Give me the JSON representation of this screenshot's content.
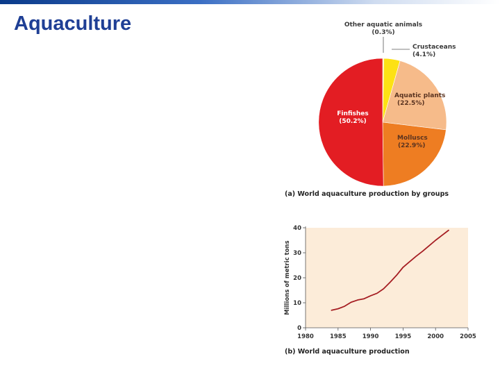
{
  "slide": {
    "title": "Aquaculture"
  },
  "colors": {
    "accent_title": "#1f3f95",
    "finfishes": "#e31d23",
    "molluscs": "#ee7d22",
    "aquatic_plants": "#f6bb8a",
    "crustaceans": "#fde114",
    "other": "#f3ea8a",
    "line": "#a51d22",
    "plot_bg": "#fcecd9"
  },
  "chart_data": [
    {
      "type": "pie",
      "caption": "(a) World aquaculture production by groups",
      "slices": [
        {
          "name": "Other aquatic animals",
          "value_label": "(0.3%)",
          "value": 0.3
        },
        {
          "name": "Crustaceans",
          "value_label": "(4.1%)",
          "value": 4.1
        },
        {
          "name": "Aquatic plants",
          "value_label": "(22.5%)",
          "value": 22.5
        },
        {
          "name": "Molluscs",
          "value_label": "(22.9%)",
          "value": 22.9
        },
        {
          "name": "Finfishes",
          "value_label": "(50.2%)",
          "value": 50.2
        }
      ]
    },
    {
      "type": "line",
      "caption": "(b) World aquaculture production",
      "ylabel": "Millions of metric tons",
      "xlabel": "",
      "xlim": [
        1980,
        2005
      ],
      "ylim": [
        0,
        40
      ],
      "x_ticks": [
        "1980",
        "1985",
        "1990",
        "1995",
        "2000",
        "2005"
      ],
      "y_ticks": [
        "0",
        "10",
        "20",
        "30",
        "40"
      ],
      "grid": false,
      "series": [
        {
          "x": [
            1984,
            1985,
            1986,
            1987,
            1988,
            1989,
            1990,
            1991,
            1992,
            1993,
            1994,
            1995,
            1996,
            1997,
            1998,
            1999,
            2000,
            2001,
            2002
          ],
          "values": [
            7,
            7.6,
            8.6,
            10.2,
            11.1,
            11.6,
            12.8,
            13.8,
            15.6,
            18.2,
            21,
            24.2,
            26.4,
            28.6,
            30.6,
            32.8,
            35,
            37,
            39
          ]
        }
      ]
    }
  ]
}
